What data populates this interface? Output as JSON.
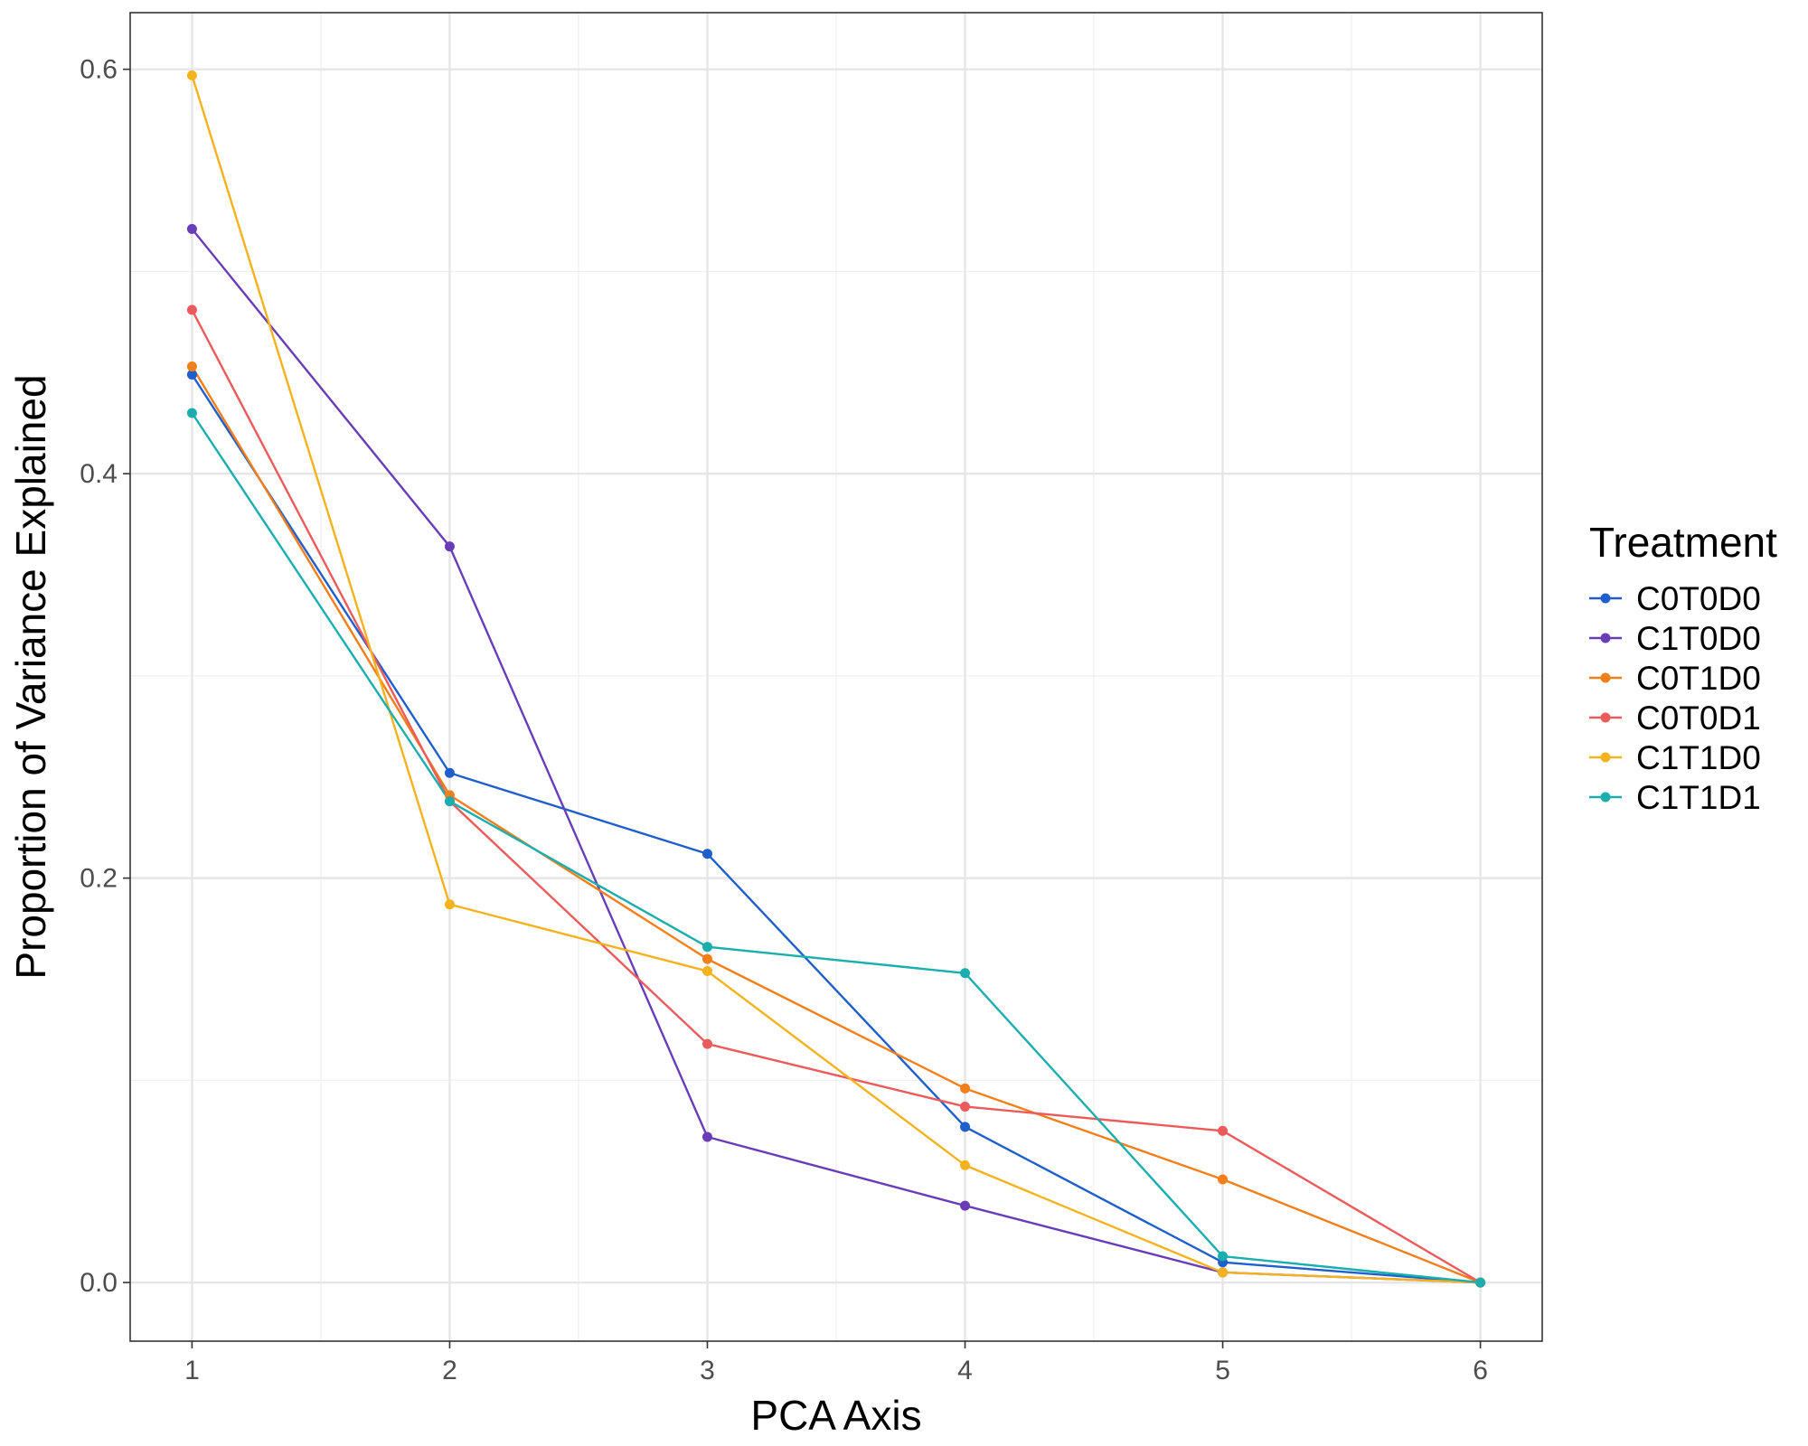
{
  "chart_data": {
    "type": "line",
    "xlabel": "PCA Axis",
    "ylabel": "Proportion of Variance Explained",
    "x": [
      1,
      2,
      3,
      4,
      5,
      6
    ],
    "xlim": [
      0.76,
      6.24
    ],
    "ylim": [
      -0.029,
      0.628
    ],
    "y_ticks": [
      0.0,
      0.2,
      0.4,
      0.6
    ],
    "y_tick_labels": [
      "0.0",
      "0.2",
      "0.4",
      "0.6"
    ],
    "x_ticks": [
      1,
      2,
      3,
      4,
      5,
      6
    ],
    "x_tick_labels": [
      "1",
      "2",
      "3",
      "4",
      "5",
      "6"
    ],
    "grid": true,
    "legend": {
      "title": "Treatment",
      "position": "right"
    },
    "series": [
      {
        "name": "C0T0D0",
        "color": "#1f5fcc",
        "values": [
          0.449,
          0.252,
          0.212,
          0.077,
          0.01,
          0.0
        ]
      },
      {
        "name": "C1T0D0",
        "color": "#6a3db8",
        "values": [
          0.521,
          0.364,
          0.072,
          0.038,
          0.005,
          0.0
        ]
      },
      {
        "name": "C0T1D0",
        "color": "#f37f1b",
        "values": [
          0.453,
          0.241,
          0.16,
          0.096,
          0.051,
          0.0
        ]
      },
      {
        "name": "C0T0D1",
        "color": "#ec5b5b",
        "values": [
          0.481,
          0.238,
          0.118,
          0.087,
          0.075,
          0.0
        ]
      },
      {
        "name": "C1T1D0",
        "color": "#f5b21f",
        "values": [
          0.597,
          0.187,
          0.154,
          0.058,
          0.005,
          0.0
        ]
      },
      {
        "name": "C1T1D1",
        "color": "#1aaeae",
        "values": [
          0.43,
          0.238,
          0.166,
          0.153,
          0.013,
          0.0
        ]
      }
    ]
  }
}
